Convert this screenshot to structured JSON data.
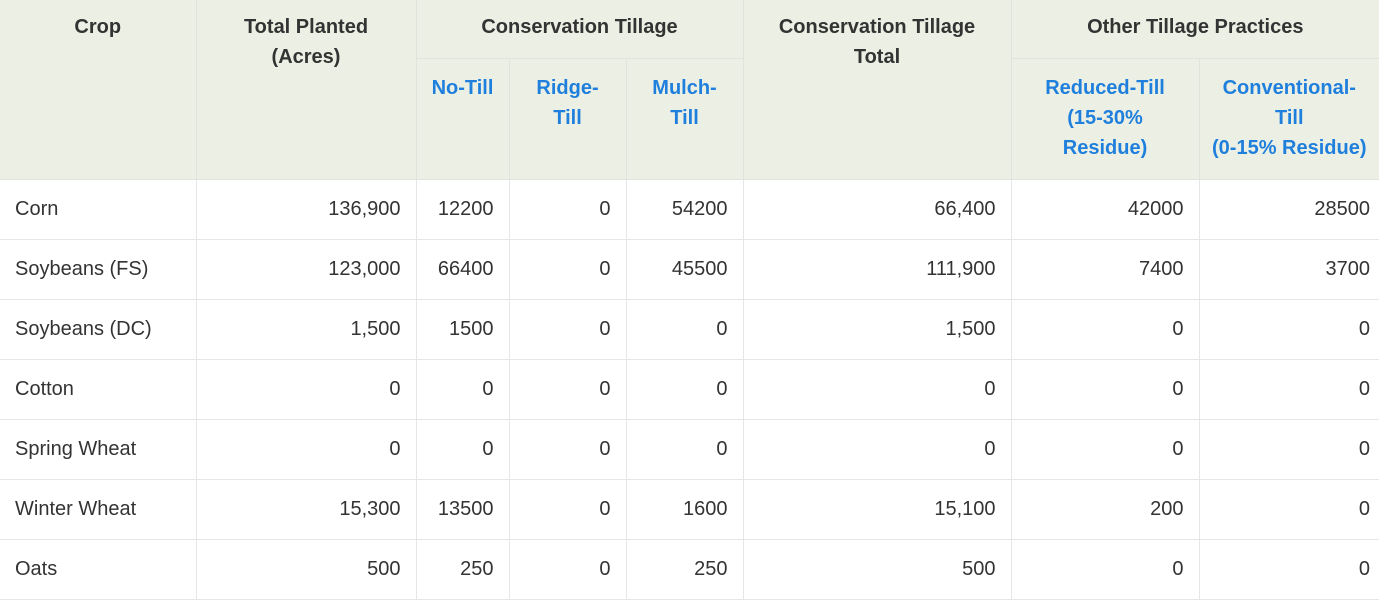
{
  "table": {
    "headers": {
      "crop": "Crop",
      "total_planted_line1": "Total Planted",
      "total_planted_line2": "(Acres)",
      "conservation_tillage": "Conservation Tillage",
      "no_till": "No-Till",
      "ridge_till_line1": "Ridge-",
      "ridge_till_line2": "Till",
      "mulch_till_line1": "Mulch-",
      "mulch_till_line2": "Till",
      "conservation_total_line1": "Conservation Tillage",
      "conservation_total_line2": "Total",
      "other_tillage": "Other Tillage Practices",
      "reduced_till_line1": "Reduced-Till",
      "reduced_till_line2": "(15-30%",
      "reduced_till_line3": "Residue)",
      "conventional_till_line1": "Conventional-",
      "conventional_till_line2": "Till",
      "conventional_till_line3": "(0-15% Residue)"
    },
    "header_link_color": "#1f7fdc",
    "header_bg_color": "#ecf0e4",
    "rows": [
      {
        "crop": "Corn",
        "total": "136,900",
        "no_till": "12200",
        "ridge_till": "0",
        "mulch_till": "54200",
        "cons_total": "66,400",
        "reduced_till": "42000",
        "conventional_till": "28500"
      },
      {
        "crop": "Soybeans (FS)",
        "total": "123,000",
        "no_till": "66400",
        "ridge_till": "0",
        "mulch_till": "45500",
        "cons_total": "111,900",
        "reduced_till": "7400",
        "conventional_till": "3700"
      },
      {
        "crop": "Soybeans (DC)",
        "total": "1,500",
        "no_till": "1500",
        "ridge_till": "0",
        "mulch_till": "0",
        "cons_total": "1,500",
        "reduced_till": "0",
        "conventional_till": "0"
      },
      {
        "crop": "Cotton",
        "total": "0",
        "no_till": "0",
        "ridge_till": "0",
        "mulch_till": "0",
        "cons_total": "0",
        "reduced_till": "0",
        "conventional_till": "0"
      },
      {
        "crop": "Spring Wheat",
        "total": "0",
        "no_till": "0",
        "ridge_till": "0",
        "mulch_till": "0",
        "cons_total": "0",
        "reduced_till": "0",
        "conventional_till": "0"
      },
      {
        "crop": "Winter Wheat",
        "total": "15,300",
        "no_till": "13500",
        "ridge_till": "0",
        "mulch_till": "1600",
        "cons_total": "15,100",
        "reduced_till": "200",
        "conventional_till": "0"
      },
      {
        "crop": "Oats",
        "total": "500",
        "no_till": "250",
        "ridge_till": "0",
        "mulch_till": "250",
        "cons_total": "500",
        "reduced_till": "0",
        "conventional_till": "0"
      }
    ]
  }
}
